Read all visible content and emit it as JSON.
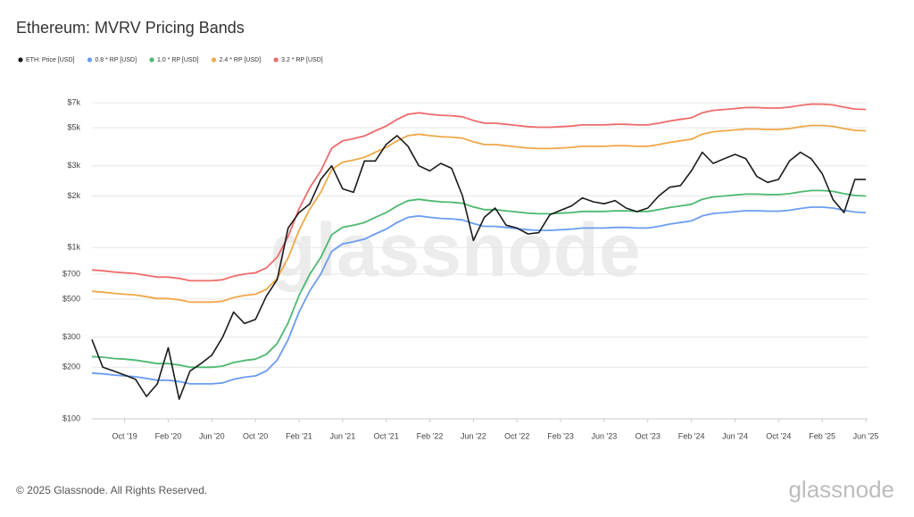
{
  "chart_data": {
    "type": "line",
    "title": "Ethereum: MVRV Pricing Bands",
    "log_scale": true,
    "grid": true,
    "legend": "top-left",
    "watermark": "glassnode",
    "copyright": "© 2025 Glassnode. All Rights Reserved.",
    "logo": "glassnode",
    "x": [
      "2019-07",
      "2019-08",
      "2019-09",
      "2019-10",
      "2019-11",
      "2019-12",
      "2020-01",
      "2020-02",
      "2020-03",
      "2020-04",
      "2020-05",
      "2020-06",
      "2020-07",
      "2020-08",
      "2020-09",
      "2020-10",
      "2020-11",
      "2020-12",
      "2021-01",
      "2021-02",
      "2021-03",
      "2021-04",
      "2021-05",
      "2021-06",
      "2021-07",
      "2021-08",
      "2021-09",
      "2021-10",
      "2021-11",
      "2021-12",
      "2022-01",
      "2022-02",
      "2022-03",
      "2022-04",
      "2022-05",
      "2022-06",
      "2022-07",
      "2022-08",
      "2022-09",
      "2022-10",
      "2022-11",
      "2022-12",
      "2023-01",
      "2023-02",
      "2023-03",
      "2023-04",
      "2023-05",
      "2023-06",
      "2023-07",
      "2023-08",
      "2023-09",
      "2023-10",
      "2023-11",
      "2023-12",
      "2024-01",
      "2024-02",
      "2024-03",
      "2024-04",
      "2024-05",
      "2024-06",
      "2024-07",
      "2024-08",
      "2024-09",
      "2024-10",
      "2024-11",
      "2024-12",
      "2025-01",
      "2025-02",
      "2025-03",
      "2025-04",
      "2025-05",
      "2025-06"
    ],
    "xticks": [
      {
        "value": "2019-10",
        "label": "Oct '19"
      },
      {
        "value": "2020-02",
        "label": "Feb '20"
      },
      {
        "value": "2020-06",
        "label": "Jun '20"
      },
      {
        "value": "2020-10",
        "label": "Oct '20"
      },
      {
        "value": "2021-02",
        "label": "Feb '21"
      },
      {
        "value": "2021-06",
        "label": "Jun '21"
      },
      {
        "value": "2021-10",
        "label": "Oct '21"
      },
      {
        "value": "2022-02",
        "label": "Feb '22"
      },
      {
        "value": "2022-06",
        "label": "Jun '22"
      },
      {
        "value": "2022-10",
        "label": "Oct '22"
      },
      {
        "value": "2023-02",
        "label": "Feb '23"
      },
      {
        "value": "2023-06",
        "label": "Jun '23"
      },
      {
        "value": "2023-10",
        "label": "Oct '23"
      },
      {
        "value": "2024-02",
        "label": "Feb '24"
      },
      {
        "value": "2024-06",
        "label": "Jun '24"
      },
      {
        "value": "2024-10",
        "label": "Oct '24"
      },
      {
        "value": "2025-02",
        "label": "Feb '25"
      },
      {
        "value": "2025-06",
        "label": "Jun '25"
      }
    ],
    "ylim": [
      100,
      8000
    ],
    "yticks": [
      {
        "value": 100,
        "label": "$100"
      },
      {
        "value": 200,
        "label": "$200"
      },
      {
        "value": 300,
        "label": "$300"
      },
      {
        "value": 500,
        "label": "$500"
      },
      {
        "value": 700,
        "label": "$700"
      },
      {
        "value": 1000,
        "label": "$1k"
      },
      {
        "value": 2000,
        "label": "$2k"
      },
      {
        "value": 3000,
        "label": "$3k"
      },
      {
        "value": 5000,
        "label": "$5k"
      },
      {
        "value": 7000,
        "label": "$7k"
      }
    ],
    "series": [
      {
        "name": "ETH: Price [USD]",
        "color": "#1a1a1a",
        "values": [
          290,
          200,
          190,
          180,
          170,
          135,
          160,
          260,
          130,
          190,
          210,
          235,
          300,
          420,
          360,
          380,
          520,
          650,
          1300,
          1600,
          1800,
          2500,
          3000,
          2200,
          2100,
          3200,
          3200,
          4000,
          4500,
          3900,
          3000,
          2800,
          3100,
          2900,
          2000,
          1100,
          1500,
          1700,
          1350,
          1300,
          1200,
          1220,
          1550,
          1650,
          1750,
          1950,
          1850,
          1800,
          1880,
          1700,
          1620,
          1700,
          2000,
          2250,
          2300,
          2800,
          3600,
          3100,
          3300,
          3500,
          3300,
          2600,
          2400,
          2500,
          3200,
          3600,
          3300,
          2700,
          1900,
          1600,
          2500,
          2500
        ]
      },
      {
        "name": "0.8 * RP [USD]",
        "color": "#6b9cf0",
        "values": [
          185,
          183,
          180,
          178,
          176,
          172,
          168,
          168,
          165,
          160,
          160,
          160,
          162,
          170,
          175,
          178,
          190,
          220,
          290,
          420,
          560,
          700,
          950,
          1050,
          1080,
          1120,
          1200,
          1280,
          1400,
          1500,
          1530,
          1500,
          1480,
          1470,
          1450,
          1380,
          1330,
          1330,
          1310,
          1290,
          1270,
          1260,
          1260,
          1270,
          1280,
          1300,
          1300,
          1300,
          1310,
          1310,
          1300,
          1300,
          1330,
          1370,
          1400,
          1430,
          1530,
          1580,
          1600,
          1620,
          1640,
          1640,
          1630,
          1630,
          1650,
          1690,
          1720,
          1720,
          1700,
          1650,
          1610,
          1600
        ]
      },
      {
        "name": "1.0 * RP [USD]",
        "color": "#4cb870",
        "values": [
          231,
          229,
          225,
          223,
          220,
          215,
          210,
          210,
          206,
          200,
          200,
          200,
          203,
          213,
          219,
          223,
          238,
          275,
          363,
          525,
          700,
          875,
          1188,
          1313,
          1350,
          1400,
          1500,
          1600,
          1750,
          1875,
          1913,
          1875,
          1850,
          1838,
          1813,
          1725,
          1663,
          1663,
          1638,
          1613,
          1588,
          1575,
          1575,
          1588,
          1600,
          1625,
          1625,
          1625,
          1638,
          1638,
          1625,
          1625,
          1663,
          1713,
          1750,
          1788,
          1913,
          1975,
          2000,
          2025,
          2050,
          2050,
          2038,
          2038,
          2063,
          2113,
          2150,
          2150,
          2125,
          2063,
          2013,
          2000
        ]
      },
      {
        "name": "2.4 * RP [USD]",
        "color": "#f0a848",
        "values": [
          555,
          549,
          540,
          534,
          528,
          516,
          504,
          504,
          495,
          480,
          480,
          480,
          486,
          510,
          525,
          534,
          570,
          660,
          870,
          1260,
          1680,
          2100,
          2850,
          3150,
          3240,
          3360,
          3600,
          3840,
          4200,
          4500,
          4590,
          4500,
          4440,
          4410,
          4350,
          4140,
          3990,
          3990,
          3930,
          3870,
          3810,
          3780,
          3780,
          3810,
          3840,
          3900,
          3900,
          3900,
          3930,
          3930,
          3900,
          3900,
          3990,
          4110,
          4200,
          4290,
          4590,
          4740,
          4800,
          4860,
          4920,
          4920,
          4890,
          4890,
          4950,
          5070,
          5160,
          5160,
          5100,
          4950,
          4830,
          4800
        ]
      },
      {
        "name": "3.2 * RP [USD]",
        "color": "#ef6b6b",
        "values": [
          740,
          732,
          720,
          712,
          704,
          688,
          672,
          672,
          660,
          640,
          640,
          640,
          648,
          680,
          700,
          712,
          760,
          880,
          1160,
          1680,
          2240,
          2800,
          3800,
          4200,
          4320,
          4480,
          4800,
          5120,
          5600,
          6000,
          6120,
          6000,
          5920,
          5880,
          5800,
          5520,
          5320,
          5320,
          5240,
          5160,
          5080,
          5040,
          5040,
          5080,
          5120,
          5200,
          5200,
          5200,
          5240,
          5240,
          5200,
          5200,
          5320,
          5480,
          5600,
          5720,
          6120,
          6320,
          6400,
          6480,
          6560,
          6560,
          6520,
          6520,
          6600,
          6760,
          6880,
          6880,
          6800,
          6600,
          6440,
          6400
        ]
      }
    ]
  }
}
